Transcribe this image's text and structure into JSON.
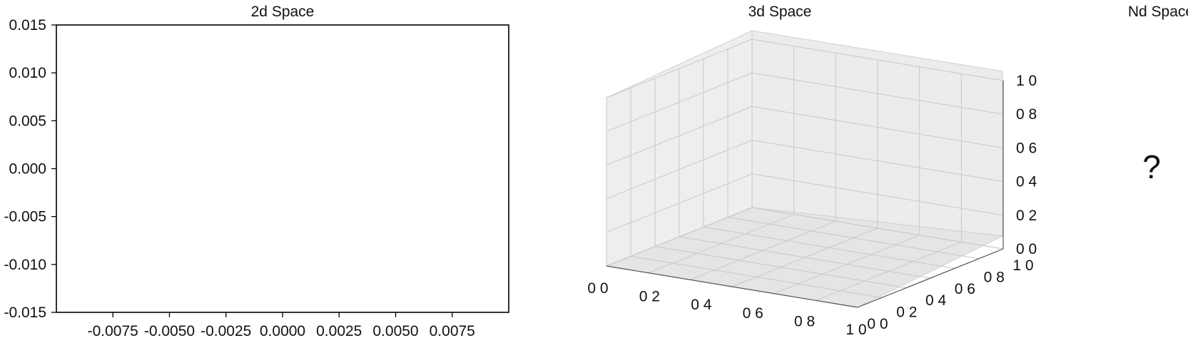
{
  "chart_data": [
    {
      "type": "scatter",
      "title": "2d Space",
      "xlabel": "",
      "ylabel": "",
      "x_ticks": [
        "-0.0075",
        "-0.0050",
        "-0.0025",
        "0.0000",
        "0.0025",
        "0.0050",
        "0.0075"
      ],
      "y_ticks": [
        "0.015",
        "0.010",
        "0.005",
        "0.000",
        "-0.005",
        "-0.010",
        "-0.015"
      ],
      "xlim": [
        -0.01,
        0.01
      ],
      "ylim": [
        -0.015,
        0.015
      ],
      "series": [],
      "grid": false
    },
    {
      "type": "scatter",
      "projection": "3d",
      "title": "3d Space",
      "x_ticks": [
        "0 0",
        "0 2",
        "0 4",
        "0 6",
        "0 8",
        "1 0"
      ],
      "y_ticks": [
        "0 0",
        "0 2",
        "0 4",
        "0 6",
        "0 8",
        "1 0"
      ],
      "z_ticks": [
        "0 0",
        "0 2",
        "0 4",
        "0 6",
        "0 8",
        "1 0"
      ],
      "xlim": [
        0,
        1
      ],
      "ylim": [
        0,
        1
      ],
      "zlim": [
        0,
        1
      ],
      "series": [],
      "grid": true
    },
    {
      "type": "other",
      "title": "Nd Space",
      "placeholder": "?"
    }
  ],
  "colors": {
    "pane": "#eeeeee",
    "pane_floor": "#e6e6e6",
    "grid": "#c8c8c8",
    "frame": "#000000"
  }
}
